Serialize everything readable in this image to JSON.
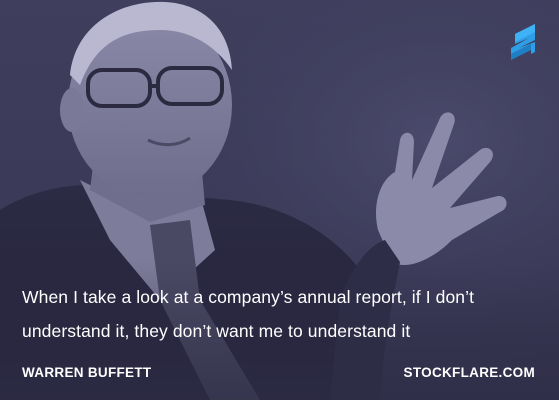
{
  "image": {
    "subject": "portrait-photo",
    "tint_color": "#3d3c5a"
  },
  "logo": {
    "icon": "stockflare-s-logo-icon",
    "color": "#2f9ee8"
  },
  "quote": {
    "text": "When I take a look at a company’s annual report, if I don’t understand it, they don’t want me to understand it"
  },
  "author": {
    "name": "WARREN BUFFETT"
  },
  "site": {
    "label": "STOCKFLARE.COM"
  }
}
